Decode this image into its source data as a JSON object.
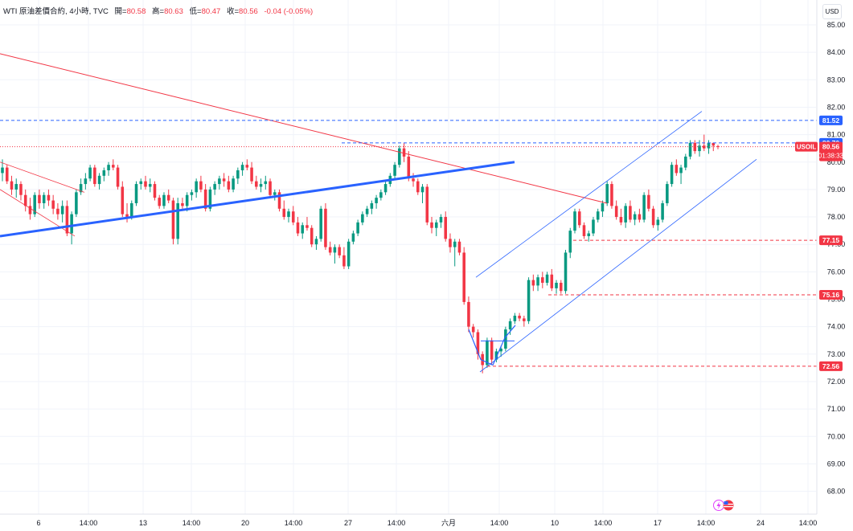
{
  "header": {
    "symbol": "WTI 原油差價合約, 4小時, TVC",
    "open_label": "開=",
    "open": "80.58",
    "high_label": "高=",
    "high": "80.63",
    "low_label": "低=",
    "low": "80.47",
    "close_label": "收=",
    "close": "80.56",
    "change": "-0.04 (-0.05%)"
  },
  "currency_button": "USD",
  "colors": {
    "up": "#089981",
    "down": "#f23645",
    "trend": "#2962ff",
    "resistance": "#f23645",
    "channel": "#2962ff"
  },
  "icons": [
    "lightning-icon",
    "us-flag-icon"
  ],
  "chart_data": {
    "type": "candlestick",
    "ylim": [
      67.5,
      85.5
    ],
    "y_ticks": [
      "85.00",
      "84.00",
      "83.00",
      "82.00",
      "81.00",
      "80.00",
      "79.00",
      "78.00",
      "77.00",
      "76.00",
      "75.00",
      "74.00",
      "73.00",
      "72.00",
      "71.00",
      "70.00",
      "69.00",
      "68.00"
    ],
    "x_ticks": [
      "6",
      "14:00",
      "13",
      "14:00",
      "20",
      "14:00",
      "27",
      "14:00",
      "六月",
      "14:00",
      "10",
      "14:00",
      "17",
      "14:00",
      "24",
      "14:00"
    ],
    "price_labels": [
      {
        "value": 81.52,
        "text": "81.52",
        "style": "blue"
      },
      {
        "value": 80.7,
        "text": "80.70",
        "style": "blue"
      },
      {
        "value": 80.56,
        "text": "80.56",
        "sub": "01:38:33",
        "tag": "USOIL",
        "style": "red"
      },
      {
        "value": 77.15,
        "text": "77.15",
        "style": "red"
      },
      {
        "value": 75.16,
        "text": "75.16",
        "style": "red"
      },
      {
        "value": 72.56,
        "text": "72.56",
        "style": "red"
      }
    ],
    "candles": [
      [
        79.6,
        80.1,
        79.3,
        79.8
      ],
      [
        79.8,
        79.9,
        79.2,
        79.3
      ],
      [
        79.3,
        79.5,
        78.8,
        79.0
      ],
      [
        79.0,
        79.4,
        78.7,
        79.2
      ],
      [
        79.2,
        79.3,
        78.6,
        78.8
      ],
      [
        78.8,
        79.0,
        78.2,
        78.4
      ],
      [
        78.4,
        78.7,
        77.9,
        78.1
      ],
      [
        78.1,
        78.9,
        78.0,
        78.8
      ],
      [
        78.8,
        79.0,
        78.3,
        78.5
      ],
      [
        78.5,
        78.9,
        78.3,
        78.8
      ],
      [
        78.8,
        79.0,
        78.4,
        78.6
      ],
      [
        78.6,
        78.8,
        78.1,
        78.3
      ],
      [
        78.3,
        78.5,
        77.9,
        78.1
      ],
      [
        78.1,
        78.6,
        77.8,
        78.4
      ],
      [
        78.4,
        78.6,
        77.3,
        77.4
      ],
      [
        77.4,
        78.2,
        77.0,
        78.1
      ],
      [
        78.1,
        79.0,
        78.0,
        78.9
      ],
      [
        78.9,
        79.4,
        78.8,
        79.2
      ],
      [
        79.2,
        79.6,
        79.0,
        79.4
      ],
      [
        79.4,
        79.9,
        79.3,
        79.8
      ],
      [
        79.8,
        79.9,
        79.1,
        79.2
      ],
      [
        79.2,
        79.6,
        79.0,
        79.5
      ],
      [
        79.5,
        79.8,
        79.3,
        79.7
      ],
      [
        79.7,
        80.0,
        79.5,
        79.9
      ],
      [
        79.9,
        80.1,
        79.7,
        79.8
      ],
      [
        79.8,
        79.9,
        79.0,
        79.1
      ],
      [
        79.1,
        79.3,
        78.0,
        78.1
      ],
      [
        78.1,
        78.5,
        77.8,
        78.0
      ],
      [
        78.0,
        78.6,
        77.9,
        78.5
      ],
      [
        78.5,
        79.3,
        78.4,
        79.2
      ],
      [
        79.2,
        79.4,
        79.0,
        79.3
      ],
      [
        79.3,
        79.5,
        79.0,
        79.1
      ],
      [
        79.1,
        79.4,
        78.9,
        79.2
      ],
      [
        79.2,
        79.3,
        78.6,
        78.7
      ],
      [
        78.7,
        78.8,
        78.3,
        78.4
      ],
      [
        78.4,
        78.9,
        78.3,
        78.8
      ],
      [
        78.8,
        79.0,
        78.5,
        78.6
      ],
      [
        78.6,
        78.7,
        77.0,
        77.2
      ],
      [
        77.2,
        78.7,
        77.0,
        78.5
      ],
      [
        78.5,
        78.7,
        78.3,
        78.4
      ],
      [
        78.4,
        78.9,
        78.2,
        78.8
      ],
      [
        78.8,
        79.0,
        78.6,
        78.9
      ],
      [
        78.9,
        79.4,
        78.7,
        79.3
      ],
      [
        79.3,
        79.5,
        78.9,
        79.0
      ],
      [
        79.0,
        79.2,
        78.2,
        78.3
      ],
      [
        78.3,
        79.1,
        78.2,
        79.0
      ],
      [
        79.0,
        79.3,
        78.8,
        79.2
      ],
      [
        79.2,
        79.5,
        79.0,
        79.4
      ],
      [
        79.4,
        79.6,
        79.1,
        79.3
      ],
      [
        79.3,
        79.5,
        78.9,
        79.0
      ],
      [
        79.0,
        79.5,
        78.9,
        79.4
      ],
      [
        79.4,
        79.8,
        79.2,
        79.7
      ],
      [
        79.7,
        80.0,
        79.5,
        79.9
      ],
      [
        79.9,
        80.1,
        79.7,
        79.8
      ],
      [
        79.8,
        80.0,
        79.2,
        79.3
      ],
      [
        79.3,
        79.5,
        79.0,
        79.1
      ],
      [
        79.1,
        79.4,
        78.9,
        79.2
      ],
      [
        79.2,
        79.5,
        79.0,
        79.3
      ],
      [
        79.3,
        79.4,
        78.7,
        78.8
      ],
      [
        78.8,
        79.0,
        78.6,
        78.9
      ],
      [
        78.9,
        79.0,
        78.2,
        78.3
      ],
      [
        78.3,
        78.6,
        77.9,
        78.0
      ],
      [
        78.0,
        78.3,
        77.8,
        78.2
      ],
      [
        78.2,
        78.4,
        77.7,
        77.8
      ],
      [
        77.8,
        78.0,
        77.3,
        77.4
      ],
      [
        77.4,
        77.8,
        77.2,
        77.7
      ],
      [
        77.7,
        78.0,
        77.5,
        77.6
      ],
      [
        77.6,
        77.7,
        76.9,
        77.0
      ],
      [
        77.0,
        77.3,
        76.8,
        77.2
      ],
      [
        77.2,
        78.4,
        77.1,
        78.3
      ],
      [
        78.3,
        78.5,
        76.8,
        76.9
      ],
      [
        76.9,
        77.1,
        76.6,
        76.7
      ],
      [
        76.7,
        77.0,
        76.3,
        76.9
      ],
      [
        76.9,
        77.0,
        76.5,
        76.6
      ],
      [
        76.6,
        76.9,
        76.1,
        76.2
      ],
      [
        76.2,
        77.2,
        76.1,
        77.1
      ],
      [
        77.1,
        77.5,
        77.0,
        77.4
      ],
      [
        77.4,
        77.9,
        77.3,
        77.8
      ],
      [
        77.8,
        78.2,
        77.7,
        78.1
      ],
      [
        78.1,
        78.4,
        78.0,
        78.3
      ],
      [
        78.3,
        78.6,
        78.1,
        78.5
      ],
      [
        78.5,
        78.8,
        78.3,
        78.7
      ],
      [
        78.7,
        79.0,
        78.6,
        78.9
      ],
      [
        78.9,
        79.3,
        78.8,
        79.2
      ],
      [
        79.2,
        79.6,
        79.1,
        79.5
      ],
      [
        79.5,
        80.0,
        79.4,
        79.9
      ],
      [
        79.9,
        80.6,
        79.8,
        80.5
      ],
      [
        80.5,
        80.7,
        80.0,
        80.2
      ],
      [
        80.2,
        80.4,
        79.3,
        79.4
      ],
      [
        79.4,
        79.6,
        79.1,
        79.3
      ],
      [
        79.3,
        79.4,
        78.8,
        78.9
      ],
      [
        78.9,
        79.2,
        78.5,
        79.1
      ],
      [
        79.1,
        79.2,
        77.7,
        77.8
      ],
      [
        77.8,
        78.0,
        77.4,
        77.6
      ],
      [
        77.6,
        77.9,
        77.3,
        77.8
      ],
      [
        77.8,
        78.1,
        77.6,
        78.0
      ],
      [
        78.0,
        78.2,
        77.1,
        77.2
      ],
      [
        77.2,
        77.4,
        76.7,
        76.9
      ],
      [
        76.9,
        77.2,
        76.2,
        77.1
      ],
      [
        77.1,
        77.2,
        76.6,
        76.7
      ],
      [
        76.7,
        76.9,
        74.8,
        74.9
      ],
      [
        74.9,
        75.1,
        73.8,
        74.0
      ],
      [
        74.0,
        74.1,
        73.6,
        73.8
      ],
      [
        73.8,
        73.9,
        72.8,
        73.0
      ],
      [
        73.0,
        73.1,
        72.3,
        72.6
      ],
      [
        72.6,
        73.6,
        72.5,
        73.5
      ],
      [
        73.5,
        73.6,
        72.6,
        72.8
      ],
      [
        72.8,
        73.2,
        72.7,
        73.1
      ],
      [
        73.1,
        73.3,
        72.9,
        73.2
      ],
      [
        73.2,
        74.0,
        73.1,
        73.9
      ],
      [
        73.9,
        74.3,
        73.7,
        74.2
      ],
      [
        74.2,
        74.5,
        74.1,
        74.4
      ],
      [
        74.4,
        74.5,
        74.2,
        74.3
      ],
      [
        74.3,
        74.4,
        74.0,
        74.2
      ],
      [
        74.2,
        75.8,
        74.1,
        75.7
      ],
      [
        75.7,
        75.9,
        75.3,
        75.5
      ],
      [
        75.5,
        75.9,
        75.3,
        75.8
      ],
      [
        75.8,
        76.0,
        75.4,
        75.6
      ],
      [
        75.6,
        76.0,
        75.5,
        75.9
      ],
      [
        75.9,
        76.1,
        75.3,
        75.4
      ],
      [
        75.4,
        75.7,
        75.2,
        75.6
      ],
      [
        75.6,
        75.7,
        75.2,
        75.3
      ],
      [
        75.3,
        76.8,
        75.2,
        76.7
      ],
      [
        76.7,
        77.6,
        76.5,
        77.5
      ],
      [
        77.5,
        78.3,
        77.4,
        78.2
      ],
      [
        78.2,
        78.3,
        77.6,
        77.7
      ],
      [
        77.7,
        77.8,
        77.2,
        77.3
      ],
      [
        77.3,
        77.5,
        77.1,
        77.4
      ],
      [
        77.4,
        78.0,
        77.3,
        77.9
      ],
      [
        77.9,
        78.3,
        77.8,
        78.2
      ],
      [
        78.2,
        78.6,
        78.0,
        78.5
      ],
      [
        78.5,
        79.3,
        78.4,
        79.2
      ],
      [
        79.2,
        79.3,
        78.3,
        78.4
      ],
      [
        78.4,
        78.6,
        77.9,
        78.0
      ],
      [
        78.0,
        78.3,
        77.7,
        77.8
      ],
      [
        77.8,
        78.5,
        77.6,
        78.4
      ],
      [
        78.4,
        78.6,
        77.8,
        77.9
      ],
      [
        77.9,
        78.2,
        77.7,
        78.1
      ],
      [
        78.1,
        78.3,
        77.8,
        77.9
      ],
      [
        77.9,
        78.9,
        77.8,
        78.8
      ],
      [
        78.8,
        79.0,
        78.2,
        78.3
      ],
      [
        78.3,
        78.4,
        77.6,
        77.7
      ],
      [
        77.7,
        78.0,
        77.5,
        77.9
      ],
      [
        77.9,
        78.6,
        77.8,
        78.5
      ],
      [
        78.5,
        79.3,
        78.4,
        79.2
      ],
      [
        79.2,
        80.0,
        79.1,
        79.9
      ],
      [
        79.9,
        80.1,
        79.5,
        79.6
      ],
      [
        79.6,
        79.9,
        79.2,
        79.8
      ],
      [
        79.8,
        80.3,
        79.7,
        80.2
      ],
      [
        80.2,
        80.8,
        80.1,
        80.7
      ],
      [
        80.7,
        80.8,
        80.3,
        80.4
      ],
      [
        80.4,
        80.8,
        80.2,
        80.6
      ],
      [
        80.6,
        81.0,
        80.4,
        80.5
      ],
      [
        80.5,
        80.8,
        80.3,
        80.7
      ],
      [
        80.7,
        80.7,
        80.4,
        80.6
      ],
      [
        80.58,
        80.63,
        80.47,
        80.56
      ]
    ]
  }
}
